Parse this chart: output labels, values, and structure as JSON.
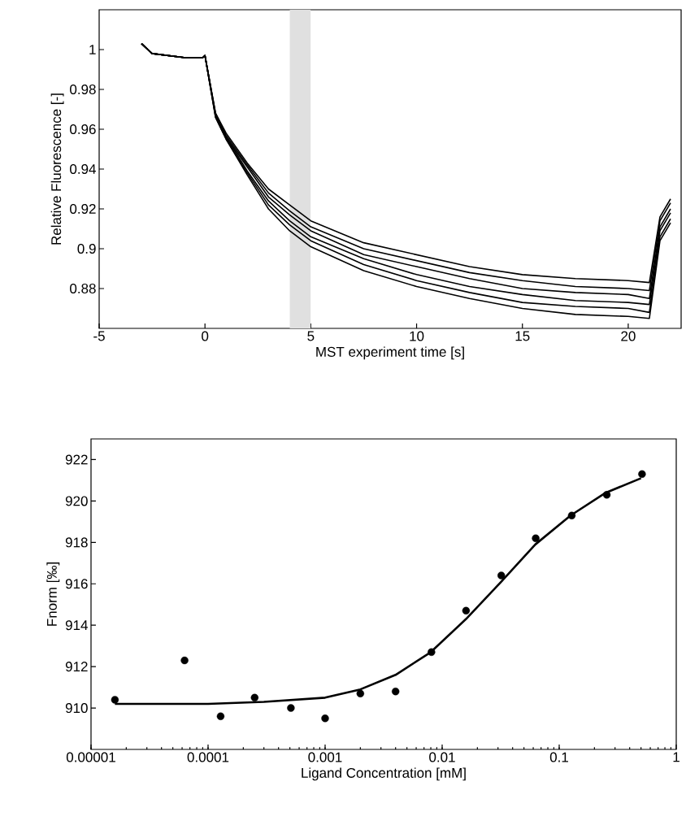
{
  "chart_data": [
    {
      "type": "line",
      "xlabel": "MST experiment time [s]",
      "ylabel": "Relative Fluorescence [-]",
      "x": [
        -3,
        -2.5,
        -1,
        -0.1,
        0,
        0.5,
        1,
        2,
        3,
        4,
        5,
        7.5,
        10,
        12.5,
        15,
        17.5,
        20,
        21,
        21.5,
        22
      ],
      "series": [
        {
          "color": "#000000",
          "values": [
            1.003,
            0.998,
            0.996,
            0.996,
            0.997,
            0.968,
            0.958,
            0.943,
            0.93,
            0.922,
            0.914,
            0.903,
            0.897,
            0.891,
            0.887,
            0.885,
            0.884,
            0.883,
            0.916,
            0.925
          ]
        },
        {
          "color": "#000000",
          "values": [
            1.003,
            0.998,
            0.996,
            0.996,
            0.997,
            0.968,
            0.957,
            0.942,
            0.928,
            0.919,
            0.911,
            0.9,
            0.894,
            0.888,
            0.884,
            0.881,
            0.88,
            0.879,
            0.914,
            0.923
          ]
        },
        {
          "color": "#000000",
          "values": [
            1.003,
            0.998,
            0.996,
            0.996,
            0.997,
            0.967,
            0.956,
            0.941,
            0.926,
            0.917,
            0.909,
            0.897,
            0.891,
            0.885,
            0.88,
            0.878,
            0.877,
            0.875,
            0.911,
            0.92
          ]
        },
        {
          "color": "#000000",
          "values": [
            1.003,
            0.998,
            0.996,
            0.996,
            0.997,
            0.967,
            0.956,
            0.939,
            0.924,
            0.914,
            0.906,
            0.895,
            0.887,
            0.881,
            0.877,
            0.874,
            0.873,
            0.872,
            0.909,
            0.918
          ]
        },
        {
          "color": "#000000",
          "values": [
            1.003,
            0.998,
            0.996,
            0.996,
            0.997,
            0.966,
            0.955,
            0.938,
            0.922,
            0.912,
            0.904,
            0.892,
            0.884,
            0.878,
            0.873,
            0.871,
            0.87,
            0.868,
            0.906,
            0.915
          ]
        },
        {
          "color": "#000000",
          "values": [
            1.003,
            0.998,
            0.996,
            0.996,
            0.997,
            0.966,
            0.955,
            0.937,
            0.92,
            0.909,
            0.901,
            0.889,
            0.881,
            0.875,
            0.87,
            0.867,
            0.866,
            0.865,
            0.904,
            0.913
          ]
        }
      ],
      "xlim": [
        -5,
        22.5
      ],
      "ylim": [
        0.86,
        1.02
      ],
      "xticks": [
        -5,
        0,
        5,
        10,
        15,
        20
      ],
      "yticks": [
        0.88,
        0.9,
        0.92,
        0.94,
        0.96,
        0.98,
        1
      ],
      "bands": [
        {
          "axis": "x",
          "from": 4,
          "to": 5,
          "color": "#e0e0e0"
        }
      ],
      "marker": "none",
      "line_style": "solid",
      "grid": false
    },
    {
      "type": "scatter",
      "xlabel": "Ligand Concentration [mM]",
      "ylabel": "Fnorm [‰]",
      "log": "x",
      "series": [
        {
          "type": "scatter",
          "color": "#000000",
          "marker": "circle",
          "x": [
            1.6e-05,
            6.3e-05,
            0.000128,
            0.00025,
            0.00051,
            0.001,
            0.002,
            0.004,
            0.0081,
            0.016,
            0.032,
            0.063,
            0.128,
            0.255,
            0.51
          ],
          "values": [
            910.4,
            912.3,
            909.6,
            910.5,
            910.0,
            909.5,
            910.7,
            910.8,
            912.7,
            914.7,
            916.4,
            918.2,
            919.3,
            920.3,
            921.3
          ]
        },
        {
          "type": "line",
          "color": "#000000",
          "marker": "none",
          "line_style": "solid",
          "x": [
            1.6e-05,
            4e-05,
            0.0001,
            0.0003,
            0.001,
            0.002,
            0.004,
            0.008,
            0.016,
            0.032,
            0.0625,
            0.125,
            0.25,
            0.5
          ],
          "values": [
            910.2,
            910.2,
            910.2,
            910.3,
            910.5,
            910.9,
            911.6,
            912.7,
            914.3,
            916.1,
            917.9,
            919.3,
            920.4,
            921.1
          ]
        }
      ],
      "xlim": [
        1e-05,
        1
      ],
      "ylim": [
        908,
        923
      ],
      "xticks": [
        {
          "value": 1e-05,
          "label": "0.00001"
        },
        {
          "value": 0.0001,
          "label": "0.0001"
        },
        {
          "value": 0.001,
          "label": "0.001"
        },
        {
          "value": 0.01,
          "label": "0.01"
        },
        {
          "value": 0.1,
          "label": "0.1"
        },
        {
          "value": 1,
          "label": "1"
        }
      ],
      "yticks": [
        910,
        912,
        914,
        916,
        918,
        920,
        922
      ],
      "grid": false
    }
  ]
}
